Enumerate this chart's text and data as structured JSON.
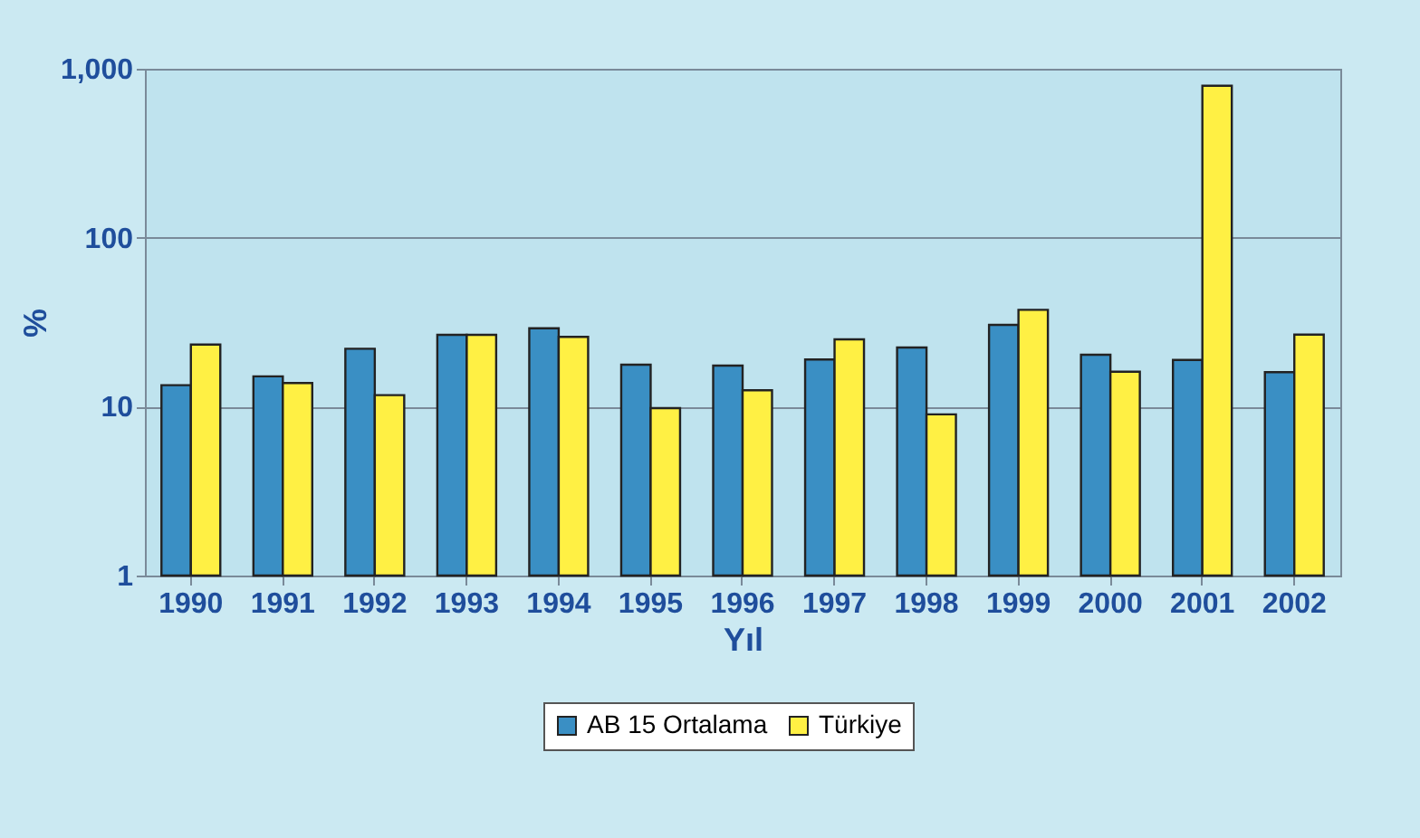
{
  "chart_data": {
    "type": "bar",
    "xlabel": "Yıl",
    "ylabel": "%",
    "log": "y",
    "grid": "y",
    "legend": "bottom",
    "categories": [
      "1990",
      "1991",
      "1992",
      "1993",
      "1994",
      "1995",
      "1996",
      "1997",
      "1998",
      "1999",
      "2000",
      "2001",
      "2002"
    ],
    "ylim": [
      1,
      1000
    ],
    "yticks": [
      1,
      10,
      100,
      {
        "value": 1000,
        "label": "1,000"
      }
    ],
    "series": [
      {
        "name": "AB 15 Ortalama",
        "color": "#3a8fc4",
        "values": [
          13.4,
          15.1,
          22,
          26.6,
          29.1,
          17.7,
          17.5,
          19,
          22.4,
          30.5,
          20.3,
          18.9,
          16
        ]
      },
      {
        "name": "Türkiye",
        "color": "#fff044",
        "values": [
          23.3,
          13.8,
          11.7,
          26.6,
          25.9,
          9.8,
          12.5,
          25,
          9,
          37.4,
          16.1,
          794,
          26.7
        ]
      }
    ]
  }
}
